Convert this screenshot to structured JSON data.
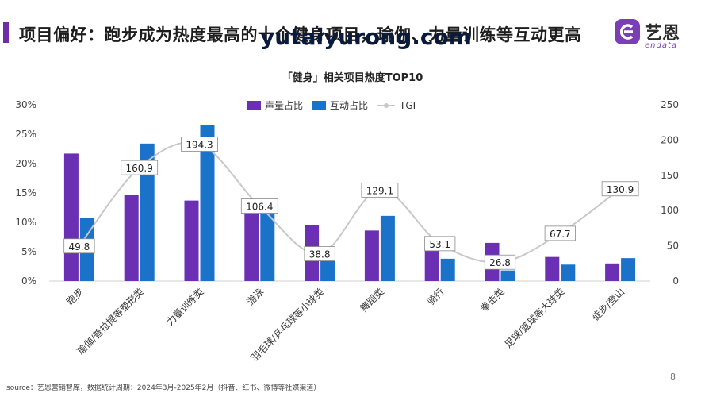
{
  "slide": {
    "title": "项目偏好：跑步成为热度最高的十个健身项目，瑜伽、力量训练等互动更高",
    "watermark": "yutaiyurong.com",
    "logo_cn": "艺恩",
    "logo_en": "endata",
    "source": "source：艺恩营销智库，数据统计周期：2024年3月-2025年2月（抖音、红书、微博等社媒渠道）",
    "page_number": "8"
  },
  "chart_data": {
    "type": "bar",
    "title": "「健身」相关项目热度TOP10",
    "categories": [
      "跑步",
      "瑜伽/普拉提等塑形类",
      "力量训练类",
      "游泳",
      "羽毛球/乒乓球等小球类",
      "舞蹈类",
      "骑行",
      "拳击类",
      "足球/篮球等大球类",
      "徒步/登山"
    ],
    "series": [
      {
        "name": "声量占比",
        "axis": "left",
        "color": "#6b2fb3",
        "values": [
          21.7,
          14.6,
          13.7,
          11.7,
          9.5,
          8.6,
          7.0,
          6.5,
          4.1,
          3.0
        ]
      },
      {
        "name": "互动占比",
        "axis": "left",
        "color": "#1a73c8",
        "values": [
          10.8,
          23.4,
          26.5,
          11.8,
          3.8,
          11.1,
          3.8,
          1.8,
          2.8,
          3.9
        ]
      }
    ],
    "line": {
      "name": "TGI",
      "axis": "right",
      "color": "#c8c8c8",
      "values": [
        49.8,
        160.9,
        194.3,
        106.4,
        38.8,
        129.1,
        53.1,
        26.8,
        67.7,
        130.9
      ]
    },
    "y_left": {
      "min": 0,
      "max": 30,
      "ticks": [
        0,
        5,
        10,
        15,
        20,
        25,
        30
      ],
      "format": "percent"
    },
    "y_right": {
      "min": 0,
      "max": 250,
      "ticks": [
        0,
        50,
        100,
        150,
        200,
        250
      ]
    },
    "legend_position": "top",
    "grid": false
  }
}
